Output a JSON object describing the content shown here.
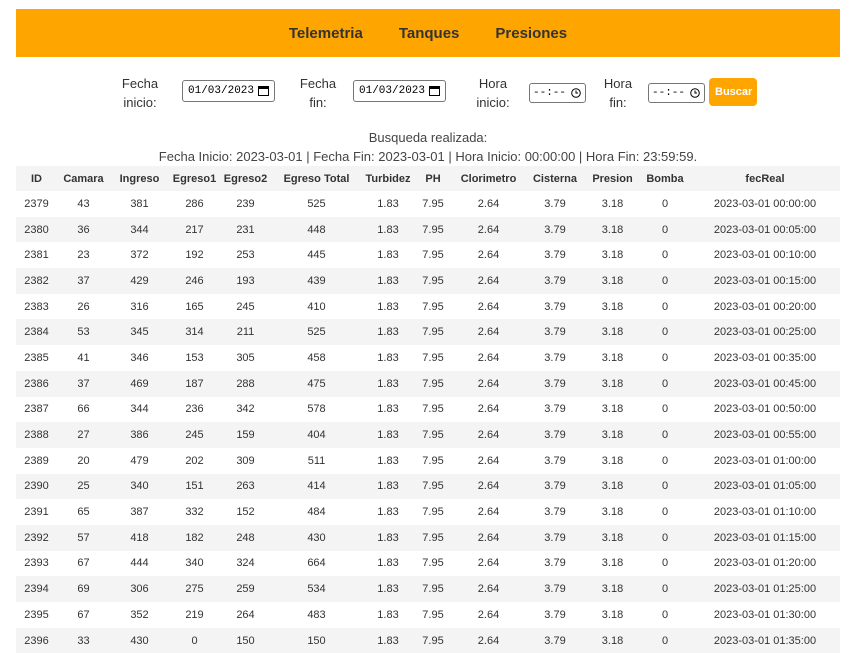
{
  "nav": {
    "items": [
      "Telemetria",
      "Tanques",
      "Presiones"
    ]
  },
  "filters": {
    "fecha_inicio_label_1": "Fecha",
    "fecha_inicio_label_2": "inicio:",
    "fecha_inicio_value": "01/03/2023",
    "fecha_fin_label_1": "Fecha",
    "fecha_fin_label_2": "fin:",
    "fecha_fin_value": "01/03/2023",
    "hora_inicio_label_1": "Hora",
    "hora_inicio_label_2": "inicio:",
    "hora_inicio_value": "--:--",
    "hora_fin_label_1": "Hora",
    "hora_fin_label_2": "fin:",
    "hora_fin_value": "--:--",
    "buscar_label": "Buscar"
  },
  "summary": {
    "line1": "Busqueda realizada:",
    "line2": "Fecha Inicio: 2023-03-01 | Fecha Fin: 2023-03-01 | Hora Inicio: 00:00:00 | Hora Fin: 23:59:59."
  },
  "table": {
    "columns": [
      "ID",
      "Camara",
      "Ingreso",
      "Egreso1",
      "Egreso2",
      "Egreso Total",
      "Turbidez",
      "PH",
      "Clorimetro",
      "Cisterna",
      "Presion",
      "Bomba",
      "fecReal"
    ],
    "rows": [
      [
        "2379",
        "43",
        "381",
        "286",
        "239",
        "525",
        "1.83",
        "7.95",
        "2.64",
        "3.79",
        "3.18",
        "0",
        "2023-03-01 00:00:00"
      ],
      [
        "2380",
        "36",
        "344",
        "217",
        "231",
        "448",
        "1.83",
        "7.95",
        "2.64",
        "3.79",
        "3.18",
        "0",
        "2023-03-01 00:05:00"
      ],
      [
        "2381",
        "23",
        "372",
        "192",
        "253",
        "445",
        "1.83",
        "7.95",
        "2.64",
        "3.79",
        "3.18",
        "0",
        "2023-03-01 00:10:00"
      ],
      [
        "2382",
        "37",
        "429",
        "246",
        "193",
        "439",
        "1.83",
        "7.95",
        "2.64",
        "3.79",
        "3.18",
        "0",
        "2023-03-01 00:15:00"
      ],
      [
        "2383",
        "26",
        "316",
        "165",
        "245",
        "410",
        "1.83",
        "7.95",
        "2.64",
        "3.79",
        "3.18",
        "0",
        "2023-03-01 00:20:00"
      ],
      [
        "2384",
        "53",
        "345",
        "314",
        "211",
        "525",
        "1.83",
        "7.95",
        "2.64",
        "3.79",
        "3.18",
        "0",
        "2023-03-01 00:25:00"
      ],
      [
        "2385",
        "41",
        "346",
        "153",
        "305",
        "458",
        "1.83",
        "7.95",
        "2.64",
        "3.79",
        "3.18",
        "0",
        "2023-03-01 00:35:00"
      ],
      [
        "2386",
        "37",
        "469",
        "187",
        "288",
        "475",
        "1.83",
        "7.95",
        "2.64",
        "3.79",
        "3.18",
        "0",
        "2023-03-01 00:45:00"
      ],
      [
        "2387",
        "66",
        "344",
        "236",
        "342",
        "578",
        "1.83",
        "7.95",
        "2.64",
        "3.79",
        "3.18",
        "0",
        "2023-03-01 00:50:00"
      ],
      [
        "2388",
        "27",
        "386",
        "245",
        "159",
        "404",
        "1.83",
        "7.95",
        "2.64",
        "3.79",
        "3.18",
        "0",
        "2023-03-01 00:55:00"
      ],
      [
        "2389",
        "20",
        "479",
        "202",
        "309",
        "511",
        "1.83",
        "7.95",
        "2.64",
        "3.79",
        "3.18",
        "0",
        "2023-03-01 01:00:00"
      ],
      [
        "2390",
        "25",
        "340",
        "151",
        "263",
        "414",
        "1.83",
        "7.95",
        "2.64",
        "3.79",
        "3.18",
        "0",
        "2023-03-01 01:05:00"
      ],
      [
        "2391",
        "65",
        "387",
        "332",
        "152",
        "484",
        "1.83",
        "7.95",
        "2.64",
        "3.79",
        "3.18",
        "0",
        "2023-03-01 01:10:00"
      ],
      [
        "2392",
        "57",
        "418",
        "182",
        "248",
        "430",
        "1.83",
        "7.95",
        "2.64",
        "3.79",
        "3.18",
        "0",
        "2023-03-01 01:15:00"
      ],
      [
        "2393",
        "67",
        "444",
        "340",
        "324",
        "664",
        "1.83",
        "7.95",
        "2.64",
        "3.79",
        "3.18",
        "0",
        "2023-03-01 01:20:00"
      ],
      [
        "2394",
        "69",
        "306",
        "275",
        "259",
        "534",
        "1.83",
        "7.95",
        "2.64",
        "3.79",
        "3.18",
        "0",
        "2023-03-01 01:25:00"
      ],
      [
        "2395",
        "67",
        "352",
        "219",
        "264",
        "483",
        "1.83",
        "7.95",
        "2.64",
        "3.79",
        "3.18",
        "0",
        "2023-03-01 01:30:00"
      ],
      [
        "2396",
        "33",
        "430",
        "0",
        "150",
        "150",
        "1.83",
        "7.95",
        "2.64",
        "3.79",
        "3.18",
        "0",
        "2023-03-01 01:35:00"
      ]
    ]
  },
  "colors": {
    "accent": "#ffa500",
    "stripe": "#f4f4f4"
  }
}
